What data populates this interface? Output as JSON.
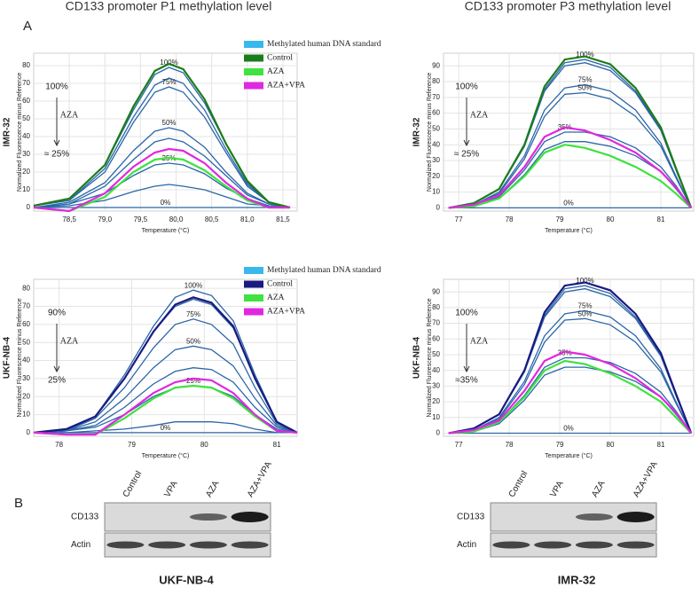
{
  "chart_data": [
    {
      "type": "line",
      "title": "CD133 promoter P1 methylation level",
      "row_label": "IMR-32",
      "xlabel": "Temperature (°C)",
      "ylabel": "Normalized Fluorescence minus Reference",
      "xlim": [
        78.0,
        81.7
      ],
      "ylim": [
        -2,
        87
      ],
      "xticks": [
        {
          "value": 78.5,
          "label": "78,5"
        },
        {
          "value": 79.0,
          "label": "79,0"
        },
        {
          "value": 79.5,
          "label": "79,5"
        },
        {
          "value": 80.0,
          "label": "80,0"
        },
        {
          "value": 80.5,
          "label": "80,5"
        },
        {
          "value": 81.0,
          "label": "81,0"
        },
        {
          "value": 81.5,
          "label": "81,5"
        }
      ],
      "yticks": [
        0,
        10,
        20,
        30,
        40,
        50,
        60,
        70,
        80
      ],
      "grid": true,
      "legend": [
        {
          "name": "Methylated human DNA standard",
          "color": "#38b8ec"
        },
        {
          "name": "Control",
          "color": "#1b7c1b"
        },
        {
          "name": "AZA",
          "color": "#3fe23f"
        },
        {
          "name": "AZA+VPA",
          "color": "#e028e0"
        }
      ],
      "annotations": [
        "100%",
        "AZA",
        "≈ 25%"
      ],
      "x": [
        78.0,
        78.5,
        79.0,
        79.4,
        79.7,
        79.9,
        80.1,
        80.4,
        80.7,
        81.0,
        81.3,
        81.6
      ],
      "series": [
        {
          "label": "100%",
          "color": "#2a66a8",
          "values": [
            1,
            5,
            24,
            55,
            75,
            79,
            76,
            59,
            36,
            14,
            3,
            0
          ]
        },
        {
          "color": "#2a66a8",
          "values": [
            1,
            4,
            22,
            51,
            69,
            73,
            70,
            55,
            33,
            13,
            3,
            0
          ]
        },
        {
          "label": "75%",
          "color": "#2a66a8",
          "values": [
            1,
            4,
            20,
            48,
            65,
            68,
            65,
            51,
            31,
            12,
            3,
            0
          ]
        },
        {
          "label": "50%",
          "color": "#2a66a8",
          "values": [
            0,
            3,
            14,
            32,
            43,
            45,
            43,
            34,
            20,
            8,
            2,
            0
          ]
        },
        {
          "color": "#2a66a8",
          "values": [
            0,
            2,
            12,
            27,
            37,
            39,
            37,
            29,
            18,
            7,
            2,
            0
          ]
        },
        {
          "label": "25%",
          "color": "#2a66a8",
          "values": [
            0,
            2,
            8,
            18,
            24,
            25,
            24,
            19,
            11,
            5,
            1,
            0
          ]
        },
        {
          "color": "#2a66a8",
          "values": [
            0,
            1,
            4,
            9,
            12,
            13,
            12,
            10,
            6,
            2,
            1,
            0
          ]
        },
        {
          "label": "0%",
          "color": "#2a66a8",
          "values": [
            0,
            0,
            0,
            0,
            0,
            0,
            0,
            0,
            0,
            0,
            0,
            0
          ]
        },
        {
          "color": "#1b7c1b",
          "values": [
            1,
            5,
            24,
            57,
            77,
            81,
            78,
            61,
            36,
            15,
            3,
            0
          ]
        },
        {
          "color": "#3fe23f",
          "values": [
            0,
            -2,
            6,
            20,
            27,
            28,
            27,
            21,
            12,
            4,
            0,
            0
          ]
        },
        {
          "color": "#e028e0",
          "values": [
            0,
            -2,
            8,
            23,
            31,
            33,
            32,
            25,
            14,
            5,
            0,
            0
          ]
        }
      ]
    },
    {
      "type": "line",
      "title": "CD133 promoter P3 methylation level",
      "row_label": "IMR-32",
      "xlabel": "Temperature (°C)",
      "ylabel": "Normalized Fluorescence minus Reference",
      "xlim": [
        76.7,
        81.65
      ],
      "ylim": [
        -2,
        98
      ],
      "xticks": [
        77,
        78,
        79,
        80,
        81
      ],
      "yticks": [
        0,
        10,
        20,
        30,
        40,
        50,
        60,
        70,
        80,
        90
      ],
      "grid": true,
      "annotations": [
        "100%",
        "AZA",
        "≈ 25%"
      ],
      "x": [
        76.8,
        77.3,
        77.8,
        78.3,
        78.7,
        79.1,
        79.5,
        80.0,
        80.5,
        81.0,
        81.3,
        81.6
      ],
      "series": [
        {
          "label": "100%",
          "color": "#2a66a8",
          "values": [
            0,
            3,
            12,
            39,
            75,
            92,
            94,
            89,
            74,
            50,
            24,
            0
          ]
        },
        {
          "color": "#2a66a8",
          "values": [
            0,
            3,
            12,
            39,
            74,
            90,
            92,
            87,
            73,
            49,
            24,
            0
          ]
        },
        {
          "label": "75%",
          "color": "#2a66a8",
          "values": [
            0,
            2,
            10,
            33,
            62,
            76,
            78,
            74,
            62,
            41,
            20,
            0
          ]
        },
        {
          "label": "50%",
          "color": "#2a66a8",
          "values": [
            0,
            2,
            9,
            31,
            58,
            72,
            73,
            69,
            58,
            39,
            19,
            0
          ]
        },
        {
          "label": "35%",
          "color": "#2a66a8",
          "values": [
            0,
            1,
            7,
            24,
            42,
            48,
            48,
            45,
            38,
            26,
            14,
            0
          ]
        },
        {
          "color": "#2a66a8",
          "values": [
            0,
            1,
            6,
            21,
            37,
            42,
            42,
            39,
            33,
            23,
            12,
            0
          ]
        },
        {
          "label": "0%",
          "color": "#2a66a8",
          "values": [
            0,
            0,
            0,
            0,
            0,
            0,
            0,
            0,
            0,
            0,
            0,
            0
          ]
        },
        {
          "color": "#1b7c1b",
          "values": [
            0,
            3,
            12,
            40,
            77,
            94,
            96,
            91,
            76,
            51,
            25,
            0
          ]
        },
        {
          "color": "#3fe23f",
          "values": [
            0,
            1,
            6,
            20,
            35,
            40,
            38,
            33,
            26,
            17,
            9,
            0
          ]
        },
        {
          "color": "#e028e0",
          "values": [
            0,
            2,
            8,
            26,
            45,
            51,
            49,
            43,
            35,
            23,
            13,
            0
          ]
        }
      ]
    },
    {
      "type": "line",
      "row_label": "UKF-NB-4",
      "xlabel": "Temperature (°C)",
      "ylabel": "Normalized Fluorescence minus Reference",
      "xlim": [
        77.65,
        81.28
      ],
      "ylim": [
        -2,
        85
      ],
      "xticks": [
        78,
        79,
        80,
        81
      ],
      "yticks": [
        0,
        10,
        20,
        30,
        40,
        50,
        60,
        70,
        80
      ],
      "grid": true,
      "legend": [
        {
          "name": "Methylated human DNA standard",
          "color": "#38b8ec"
        },
        {
          "name": "Control",
          "color": "#1a1a80"
        },
        {
          "name": "AZA",
          "color": "#3fe23f"
        },
        {
          "name": "AZA+VPA",
          "color": "#e028e0"
        }
      ],
      "annotations": [
        "90%",
        "AZA",
        "25%"
      ],
      "x": [
        77.65,
        78.1,
        78.5,
        78.9,
        79.3,
        79.6,
        79.85,
        80.1,
        80.4,
        80.7,
        81.0,
        81.28
      ],
      "series": [
        {
          "label": "100%",
          "color": "#2a66a8",
          "values": [
            0,
            2,
            9,
            32,
            59,
            75,
            79,
            76,
            62,
            32,
            6,
            0
          ]
        },
        {
          "color": "#2a66a8",
          "values": [
            0,
            1,
            9,
            30,
            56,
            70,
            74,
            71,
            58,
            30,
            6,
            0
          ]
        },
        {
          "label": "75%",
          "color": "#2a66a8",
          "values": [
            0,
            1,
            8,
            25,
            47,
            60,
            63,
            60,
            49,
            25,
            5,
            0
          ]
        },
        {
          "label": "50%",
          "color": "#2a66a8",
          "values": [
            0,
            1,
            6,
            19,
            36,
            46,
            48,
            46,
            37,
            19,
            4,
            0
          ]
        },
        {
          "color": "#2a66a8",
          "values": [
            0,
            1,
            4,
            14,
            27,
            34,
            36,
            35,
            28,
            14,
            3,
            0
          ]
        },
        {
          "label": "25%",
          "color": "#2a66a8",
          "values": [
            0,
            1,
            3,
            10,
            20,
            25,
            26,
            25,
            20,
            10,
            2,
            0
          ]
        },
        {
          "color": "#2a66a8",
          "values": [
            0,
            0,
            1,
            2,
            4,
            6,
            6,
            6,
            5,
            2,
            0,
            0
          ]
        },
        {
          "label": "0%",
          "color": "#2a66a8",
          "values": [
            0,
            0,
            0,
            0,
            0,
            0,
            0,
            0,
            0,
            0,
            0,
            0
          ]
        },
        {
          "color": "#1a1a80",
          "values": [
            0,
            2,
            9,
            30,
            56,
            71,
            75,
            72,
            59,
            30,
            6,
            0
          ]
        },
        {
          "color": "#3fe23f",
          "values": [
            0,
            -1,
            -1,
            8,
            19,
            25,
            26,
            25,
            19,
            9,
            1,
            0
          ]
        },
        {
          "color": "#e028e0",
          "values": [
            0,
            -1,
            -1,
            10,
            22,
            28,
            30,
            29,
            22,
            10,
            1,
            0
          ]
        }
      ]
    },
    {
      "type": "line",
      "row_label": "UKF-NB-4",
      "xlabel": "Temperature (°C)",
      "ylabel": "Normalized Fluorescence minus Reference",
      "xlim": [
        76.7,
        81.65
      ],
      "ylim": [
        -2,
        98
      ],
      "xticks": [
        77,
        78,
        79,
        80,
        81
      ],
      "yticks": [
        0,
        10,
        20,
        30,
        40,
        50,
        60,
        70,
        80,
        90
      ],
      "grid": true,
      "annotations": [
        "100%",
        "AZA",
        "≈35%"
      ],
      "x": [
        76.8,
        77.3,
        77.8,
        78.3,
        78.7,
        79.1,
        79.5,
        80.0,
        80.5,
        81.0,
        81.3,
        81.6
      ],
      "series": [
        {
          "label": "100%",
          "color": "#2a66a8",
          "values": [
            0,
            3,
            12,
            39,
            75,
            92,
            94,
            89,
            74,
            50,
            24,
            0
          ]
        },
        {
          "color": "#2a66a8",
          "values": [
            0,
            3,
            12,
            39,
            74,
            90,
            92,
            87,
            73,
            49,
            24,
            0
          ]
        },
        {
          "label": "75%",
          "color": "#2a66a8",
          "values": [
            0,
            2,
            10,
            33,
            62,
            76,
            78,
            74,
            62,
            41,
            20,
            0
          ]
        },
        {
          "label": "50%",
          "color": "#2a66a8",
          "values": [
            0,
            2,
            9,
            31,
            58,
            72,
            73,
            69,
            58,
            39,
            19,
            0
          ]
        },
        {
          "label": "35%",
          "color": "#2a66a8",
          "values": [
            0,
            1,
            7,
            24,
            42,
            48,
            48,
            45,
            38,
            26,
            14,
            0
          ]
        },
        {
          "color": "#2a66a8",
          "values": [
            0,
            1,
            6,
            21,
            37,
            42,
            42,
            39,
            33,
            23,
            12,
            0
          ]
        },
        {
          "label": "0%",
          "color": "#2a66a8",
          "values": [
            0,
            0,
            0,
            0,
            0,
            0,
            0,
            0,
            0,
            0,
            0,
            0
          ]
        },
        {
          "color": "#1a1a80",
          "values": [
            0,
            3,
            12,
            40,
            77,
            94,
            96,
            91,
            76,
            51,
            25,
            0
          ]
        },
        {
          "color": "#3fe23f",
          "values": [
            0,
            1,
            7,
            23,
            40,
            46,
            44,
            38,
            30,
            20,
            10,
            0
          ]
        },
        {
          "color": "#e028e0",
          "values": [
            0,
            2,
            8,
            27,
            46,
            52,
            50,
            44,
            35,
            23,
            13,
            0
          ]
        }
      ]
    }
  ],
  "panel_labels": [
    "A",
    "B"
  ],
  "blots": [
    {
      "lanes": [
        "Control",
        "VPA",
        "AZA",
        "AZA+VPA"
      ],
      "rows": [
        "CD133",
        "Actin"
      ],
      "cell_line": "UKF-NB-4"
    },
    {
      "lanes": [
        "Control",
        "VPA",
        "AZA",
        "AZA+VPA"
      ],
      "rows": [
        "CD133",
        "Actin"
      ],
      "cell_line": "IMR-32"
    }
  ]
}
